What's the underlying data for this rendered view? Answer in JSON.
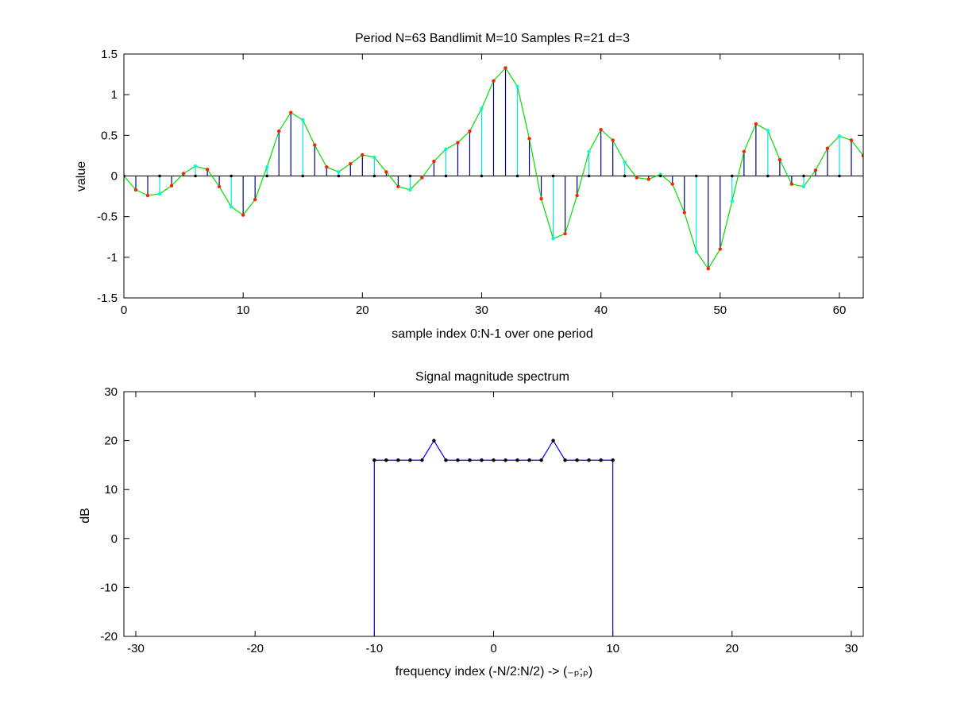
{
  "chart_data": [
    {
      "type": "stem",
      "title": "Period N=63  Bandlimit M=10  Samples R=21  d=3",
      "xlabel": "sample index 0:N-1 over one period",
      "ylabel": "value",
      "xlim": [
        0,
        62
      ],
      "ylim": [
        -1.5,
        1.5
      ],
      "xticks": [
        0,
        10,
        20,
        30,
        40,
        50,
        60
      ],
      "yticks": [
        -1.5,
        -1,
        -0.5,
        0,
        0.5,
        1,
        1.5
      ],
      "x_start": 0,
      "signal": [
        0,
        -0.17,
        -0.24,
        -0.22,
        -0.12,
        0.03,
        0.12,
        0.08,
        -0.13,
        -0.38,
        -0.48,
        -0.29,
        0.11,
        0.55,
        0.78,
        0.69,
        0.38,
        0.11,
        0.05,
        0.15,
        0.26,
        0.23,
        0.05,
        -0.13,
        -0.17,
        -0.02,
        0.18,
        0.33,
        0.41,
        0.55,
        0.83,
        1.17,
        1.33,
        1.1,
        0.46,
        -0.28,
        -0.77,
        -0.71,
        -0.24,
        0.3,
        0.57,
        0.44,
        0.17,
        -0.02,
        -0.04,
        0.02,
        -0.1,
        -0.45,
        -0.93,
        -1.14,
        -0.9,
        -0.31,
        0.3,
        0.64,
        0.56,
        0.2,
        -0.1,
        -0.13,
        0.07,
        0.34,
        0.49,
        0.44,
        0.25
      ],
      "sample_period": 3,
      "sample_offset": 0,
      "colors": {
        "stem": "#00008b",
        "sampled_stem": "#00e5e5",
        "interp_line": "#00e000",
        "marker_red": "#ff2200",
        "marker_cyan": "#00ffcc",
        "marker_zero": "#000000",
        "zero_line": "#000000"
      }
    },
    {
      "type": "line",
      "title": "Signal magnitude spectrum",
      "xlabel": "frequency index (-N/2:N/2) -> (₋ₚ;ₚ)",
      "ylabel": "dB",
      "xlim": [
        -31,
        31
      ],
      "ylim": [
        -20,
        30
      ],
      "xticks": [
        -30,
        -20,
        -10,
        0,
        10,
        20,
        30
      ],
      "yticks": [
        -20,
        -10,
        0,
        10,
        20,
        30
      ],
      "x": [
        -10,
        -9,
        -8,
        -7,
        -6,
        -5,
        -4,
        -3,
        -2,
        -1,
        0,
        1,
        2,
        3,
        4,
        5,
        6,
        7,
        8,
        9,
        10
      ],
      "y": [
        16,
        16,
        16,
        16,
        16,
        20,
        16,
        16,
        16,
        16,
        16,
        16,
        16,
        16,
        16,
        20,
        16,
        16,
        16,
        16,
        16
      ],
      "edges_drop_to": -20,
      "colors": {
        "line": "#0000ff",
        "marker": "#000000"
      }
    }
  ]
}
